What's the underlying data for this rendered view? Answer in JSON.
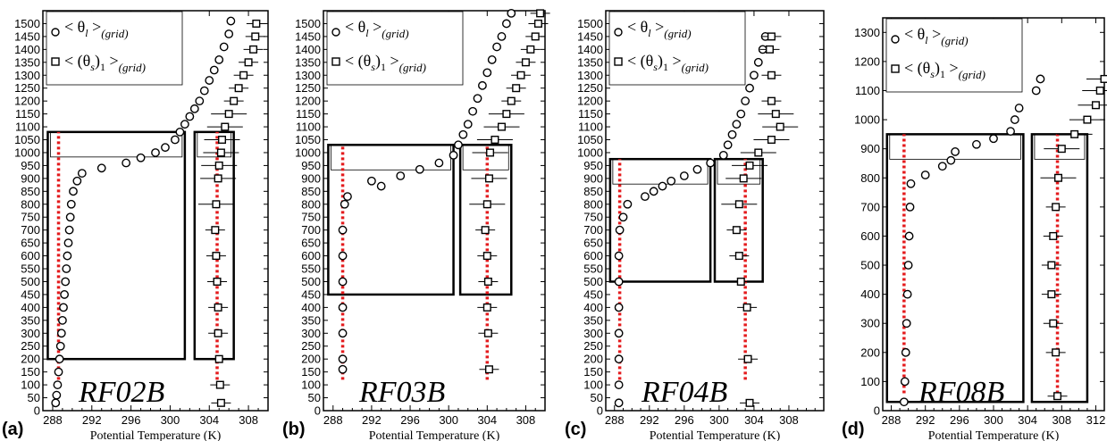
{
  "chart_data": [
    {
      "type": "scatter",
      "panel": "(a)",
      "flight": "RF02B",
      "xlabel": "Potential Temperature (K)",
      "xlim": [
        287,
        310
      ],
      "ylim": [
        0,
        1550
      ],
      "xticks": [
        288,
        292,
        296,
        300,
        304,
        308
      ],
      "yticks": [
        0,
        50,
        100,
        150,
        200,
        250,
        300,
        350,
        400,
        450,
        500,
        550,
        600,
        650,
        700,
        750,
        800,
        850,
        900,
        950,
        1000,
        1050,
        1100,
        1150,
        1200,
        1250,
        1300,
        1350,
        1400,
        1450,
        1500
      ],
      "legend": [
        "< θ_l >_(grid)",
        "< (θ_s)_1 >_(grid)"
      ],
      "series": [
        {
          "name": "< θ_l >_(grid)",
          "marker": "circle",
          "points": [
            [
              288.3,
              30
            ],
            [
              288.4,
              60
            ],
            [
              288.5,
              100
            ],
            [
              288.6,
              150
            ],
            [
              288.7,
              200
            ],
            [
              288.8,
              250
            ],
            [
              288.9,
              300
            ],
            [
              289.0,
              350
            ],
            [
              289.1,
              400
            ],
            [
              289.2,
              450
            ],
            [
              289.3,
              500
            ],
            [
              289.4,
              550
            ],
            [
              289.5,
              600
            ],
            [
              289.6,
              650
            ],
            [
              289.7,
              700
            ],
            [
              289.8,
              750
            ],
            [
              289.9,
              800
            ],
            [
              290.1,
              850
            ],
            [
              290.5,
              890
            ],
            [
              291.0,
              920
            ],
            [
              293.0,
              940
            ],
            [
              295.5,
              960
            ],
            [
              297.0,
              980
            ],
            [
              298.5,
              1000
            ],
            [
              299.5,
              1020
            ],
            [
              300.5,
              1050
            ],
            [
              301.0,
              1080
            ],
            [
              301.5,
              1110
            ],
            [
              302.0,
              1140
            ],
            [
              302.5,
              1170
            ],
            [
              303.0,
              1200
            ],
            [
              303.5,
              1240
            ],
            [
              304.0,
              1280
            ],
            [
              304.5,
              1320
            ],
            [
              305.0,
              1360
            ],
            [
              305.5,
              1410
            ],
            [
              306.0,
              1460
            ],
            [
              306.2,
              1510
            ]
          ]
        },
        {
          "name": "< (θ_s)_1 >_(grid)",
          "marker": "square",
          "error_bars": "horizontal",
          "points": [
            [
              305.2,
              30
            ],
            [
              305.1,
              100
            ],
            [
              305.0,
              200
            ],
            [
              304.9,
              300
            ],
            [
              304.9,
              400
            ],
            [
              304.8,
              500
            ],
            [
              304.7,
              600
            ],
            [
              304.6,
              700
            ],
            [
              304.7,
              800
            ],
            [
              304.9,
              900
            ],
            [
              305.0,
              950
            ],
            [
              305.2,
              1000
            ],
            [
              305.3,
              1050
            ],
            [
              305.6,
              1100
            ],
            [
              306.0,
              1150
            ],
            [
              306.5,
              1200
            ],
            [
              307.0,
              1250
            ],
            [
              307.5,
              1300
            ],
            [
              308.0,
              1350
            ],
            [
              308.5,
              1400
            ],
            [
              308.7,
              1450
            ],
            [
              308.8,
              1500
            ]
          ]
        }
      ],
      "reference_lines": [
        288.6,
        304.8
      ],
      "boxes_data": [
        {
          "x": [
            287.5,
            301.5
          ],
          "y": [
            200,
            1080
          ]
        },
        {
          "x": [
            302.5,
            306.5
          ],
          "y": [
            200,
            1080
          ]
        }
      ]
    },
    {
      "type": "scatter",
      "panel": "(b)",
      "flight": "RF03B",
      "xlabel": "Potential Temperature (K)",
      "xlim": [
        287,
        310
      ],
      "ylim": [
        0,
        1550
      ],
      "xticks": [
        288,
        292,
        296,
        300,
        304,
        308
      ],
      "yticks": [
        0,
        50,
        100,
        150,
        200,
        250,
        300,
        350,
        400,
        450,
        500,
        550,
        600,
        650,
        700,
        750,
        800,
        850,
        900,
        950,
        1000,
        1050,
        1100,
        1150,
        1200,
        1250,
        1300,
        1350,
        1400,
        1450,
        1500
      ],
      "legend": [
        "< θ_l >_(grid)",
        "< (θ_s)_1 >_(grid)"
      ],
      "series": [
        {
          "name": "< θ_l >_(grid)",
          "marker": "circle",
          "points": [
            [
              289.0,
              160
            ],
            [
              289.0,
              200
            ],
            [
              289.0,
              300
            ],
            [
              289.0,
              400
            ],
            [
              289.0,
              500
            ],
            [
              289.0,
              600
            ],
            [
              289.0,
              700
            ],
            [
              289.2,
              800
            ],
            [
              289.5,
              830
            ],
            [
              293.0,
              870
            ],
            [
              292.0,
              890
            ],
            [
              295.0,
              910
            ],
            [
              297.0,
              935
            ],
            [
              299.0,
              960
            ],
            [
              300.5,
              990
            ],
            [
              301.0,
              1030
            ],
            [
              301.5,
              1070
            ],
            [
              302.0,
              1110
            ],
            [
              302.5,
              1160
            ],
            [
              303.0,
              1210
            ],
            [
              303.5,
              1260
            ],
            [
              304.0,
              1310
            ],
            [
              304.5,
              1360
            ],
            [
              305.0,
              1410
            ],
            [
              305.5,
              1450
            ],
            [
              306.0,
              1500
            ],
            [
              306.5,
              1540
            ]
          ]
        },
        {
          "name": "< (θ_s)_1 >_(grid)",
          "marker": "square",
          "error_bars": "horizontal",
          "points": [
            [
              304.2,
              160
            ],
            [
              304.1,
              300
            ],
            [
              304.0,
              400
            ],
            [
              304.1,
              500
            ],
            [
              304.0,
              600
            ],
            [
              303.8,
              700
            ],
            [
              304.0,
              800
            ],
            [
              304.2,
              900
            ],
            [
              304.3,
              1000
            ],
            [
              304.8,
              1050
            ],
            [
              305.5,
              1100
            ],
            [
              306.0,
              1150
            ],
            [
              306.5,
              1200
            ],
            [
              307.0,
              1250
            ],
            [
              307.5,
              1300
            ],
            [
              308.0,
              1350
            ],
            [
              308.5,
              1400
            ],
            [
              309.0,
              1450
            ],
            [
              309.3,
              1500
            ],
            [
              309.5,
              1540
            ]
          ]
        }
      ],
      "reference_lines": [
        289.0,
        304.0
      ],
      "boxes_data": [
        {
          "x": [
            287.5,
            300.5
          ],
          "y": [
            450,
            1030
          ]
        },
        {
          "x": [
            301.2,
            306.5
          ],
          "y": [
            450,
            1030
          ]
        }
      ]
    },
    {
      "type": "scatter",
      "panel": "(c)",
      "flight": "RF04B",
      "xlabel": "Potential Temperature (K)",
      "xlim": [
        287,
        312
      ],
      "ylim": [
        0,
        1550
      ],
      "xticks": [
        288,
        292,
        296,
        300,
        304,
        308
      ],
      "yticks": [
        0,
        50,
        100,
        150,
        200,
        250,
        300,
        350,
        400,
        450,
        500,
        550,
        600,
        650,
        700,
        750,
        800,
        850,
        900,
        950,
        1000,
        1050,
        1100,
        1150,
        1200,
        1250,
        1300,
        1350,
        1400,
        1450,
        1500
      ],
      "legend": [
        "< θ_l >_(grid)",
        "< (θ_s)_1 >_(grid)"
      ],
      "series": [
        {
          "name": "< θ_l >_(grid)",
          "marker": "circle",
          "points": [
            [
              288.5,
              30
            ],
            [
              288.5,
              100
            ],
            [
              288.5,
              200
            ],
            [
              288.5,
              300
            ],
            [
              288.5,
              400
            ],
            [
              288.5,
              500
            ],
            [
              288.5,
              600
            ],
            [
              288.6,
              700
            ],
            [
              289.0,
              750
            ],
            [
              289.5,
              800
            ],
            [
              291.5,
              830
            ],
            [
              292.5,
              850
            ],
            [
              293.5,
              870
            ],
            [
              294.5,
              890
            ],
            [
              296.0,
              910
            ],
            [
              297.5,
              935
            ],
            [
              299.0,
              960
            ],
            [
              300.5,
              990
            ],
            [
              301.0,
              1030
            ],
            [
              301.5,
              1070
            ],
            [
              302.0,
              1110
            ],
            [
              302.5,
              1150
            ],
            [
              303.0,
              1200
            ],
            [
              303.5,
              1250
            ],
            [
              304.0,
              1300
            ],
            [
              304.5,
              1350
            ],
            [
              305.0,
              1400
            ],
            [
              305.3,
              1450
            ]
          ]
        },
        {
          "name": "< (θ_s)_1 >_(grid)",
          "marker": "square",
          "error_bars": "horizontal",
          "points": [
            [
              303.5,
              30
            ],
            [
              303.3,
              200
            ],
            [
              303.2,
              400
            ],
            [
              302.5,
              500
            ],
            [
              302.3,
              600
            ],
            [
              302.0,
              700
            ],
            [
              302.3,
              800
            ],
            [
              302.8,
              900
            ],
            [
              303.5,
              950
            ],
            [
              304.5,
              1000
            ],
            [
              306.0,
              1050
            ],
            [
              307.0,
              1100
            ],
            [
              306.5,
              1150
            ],
            [
              306.0,
              1200
            ],
            [
              306.0,
              1300
            ],
            [
              305.8,
              1400
            ],
            [
              306.0,
              1450
            ]
          ]
        }
      ],
      "reference_lines": [
        288.6,
        303.0
      ],
      "boxes_data": [
        {
          "x": [
            287.5,
            299.0
          ],
          "y": [
            500,
            975
          ]
        },
        {
          "x": [
            299.5,
            305.0
          ],
          "y": [
            500,
            975
          ]
        }
      ]
    },
    {
      "type": "scatter",
      "panel": "(d)",
      "flight": "RF08B",
      "xlabel": "Potential Temperature (K)",
      "xlim": [
        287,
        313
      ],
      "ylim": [
        0,
        1350
      ],
      "xticks": [
        288,
        292,
        296,
        300,
        304,
        308,
        312
      ],
      "yticks": [
        0,
        100,
        200,
        300,
        400,
        500,
        600,
        700,
        800,
        900,
        1000,
        1100,
        1200,
        1300
      ],
      "legend": [
        "< θ_l >_(grid)",
        "< (θ_s)_1 >_(grid)"
      ],
      "series": [
        {
          "name": "< θ_l >_(grid)",
          "marker": "circle",
          "points": [
            [
              289.5,
              30
            ],
            [
              289.6,
              100
            ],
            [
              289.7,
              200
            ],
            [
              289.8,
              300
            ],
            [
              289.9,
              400
            ],
            [
              290.0,
              500
            ],
            [
              290.1,
              600
            ],
            [
              290.2,
              700
            ],
            [
              290.3,
              780
            ],
            [
              292.0,
              810
            ],
            [
              294.0,
              840
            ],
            [
              295.0,
              860
            ],
            [
              295.5,
              890
            ],
            [
              298.0,
              915
            ],
            [
              300.0,
              935
            ],
            [
              302.0,
              960
            ],
            [
              302.5,
              1000
            ],
            [
              303.0,
              1040
            ],
            [
              305.0,
              1100
            ],
            [
              305.5,
              1140
            ]
          ]
        },
        {
          "name": "< (θ_s)_1 >_(grid)",
          "marker": "square",
          "error_bars": "horizontal",
          "points": [
            [
              307.5,
              50
            ],
            [
              307.3,
              200
            ],
            [
              307.0,
              300
            ],
            [
              306.8,
              400
            ],
            [
              306.8,
              500
            ],
            [
              307.0,
              600
            ],
            [
              307.3,
              700
            ],
            [
              307.6,
              800
            ],
            [
              308.0,
              900
            ],
            [
              309.5,
              950
            ],
            [
              311.0,
              1000
            ],
            [
              312.0,
              1050
            ],
            [
              312.5,
              1100
            ],
            [
              313.0,
              1140
            ]
          ]
        }
      ],
      "reference_lines": [
        289.5,
        307.5
      ],
      "boxes_data": [
        {
          "x": [
            287.5,
            303.5
          ],
          "y": [
            30,
            950
          ]
        },
        {
          "x": [
            304.5,
            311.0
          ],
          "y": [
            30,
            950
          ]
        }
      ]
    }
  ]
}
